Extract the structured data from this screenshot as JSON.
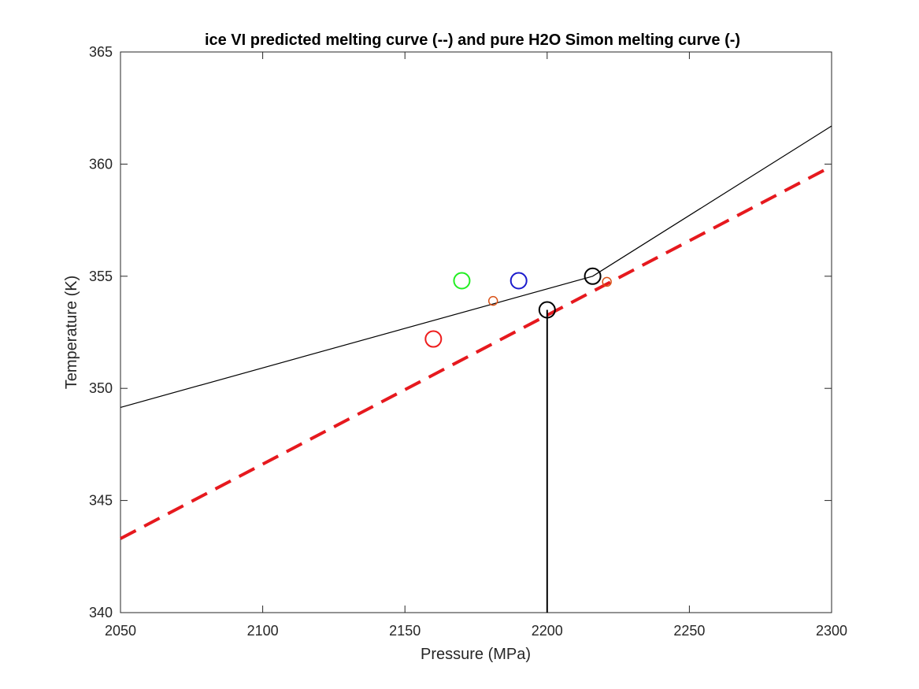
{
  "chart_data": {
    "type": "line",
    "title": "ice VI predicted melting curve (--) and pure H2O Simon melting curve (-)",
    "xlabel": "Pressure (MPa)",
    "ylabel": "Temperature (K)",
    "xlim": [
      2050,
      2300
    ],
    "ylim": [
      340,
      365
    ],
    "xticks": [
      "2050",
      "2100",
      "2150",
      "2200",
      "2250",
      "2300"
    ],
    "yticks": [
      "340",
      "345",
      "350",
      "355",
      "360",
      "365"
    ],
    "grid": false,
    "legend": "none",
    "series": [
      {
        "style": "solid",
        "color": "#000000",
        "x": [
          2050,
          2216,
          2300
        ],
        "y": [
          349.15,
          355.0,
          361.7
        ]
      },
      {
        "style": "dashed",
        "color": "#e6191e",
        "x": [
          2050,
          2300
        ],
        "y": [
          343.3,
          359.9
        ]
      },
      {
        "style": "vertical-line",
        "color": "#000000",
        "x": [
          2200,
          2200
        ],
        "y": [
          340,
          353.5
        ]
      }
    ],
    "markers": [
      {
        "x": 2160,
        "y": 352.2,
        "color": "#ee1c1c",
        "size": "large"
      },
      {
        "x": 2170,
        "y": 354.8,
        "color": "#22ee22",
        "size": "large"
      },
      {
        "x": 2190,
        "y": 354.8,
        "color": "#1a1acc",
        "size": "large"
      },
      {
        "x": 2181,
        "y": 353.9,
        "color": "#d95319",
        "size": "small"
      },
      {
        "x": 2221,
        "y": 354.75,
        "color": "#d95319",
        "size": "small"
      },
      {
        "x": 2216,
        "y": 355.0,
        "color": "#000000",
        "size": "large"
      },
      {
        "x": 2200,
        "y": 353.5,
        "color": "#000000",
        "size": "large"
      }
    ]
  }
}
